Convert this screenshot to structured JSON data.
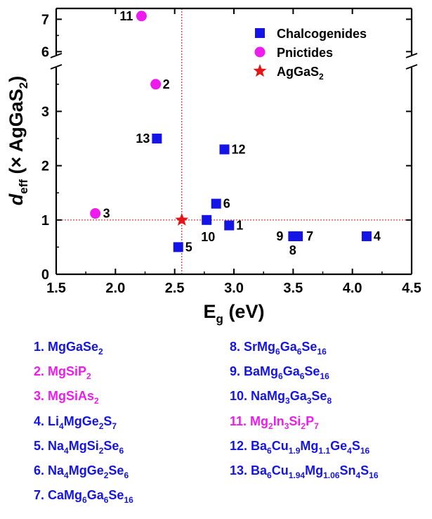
{
  "chart_data": {
    "type": "scatter",
    "xlabel": "E",
    "xlabel_sub": "g",
    "xlabel_unit": "(eV)",
    "ylabel_italic": "d",
    "ylabel_sub": "eff",
    "ylabel_rest": "(× AgGaS",
    "ylabel_rest_sub": "2",
    "ylabel_close": ")",
    "xlim": [
      1.5,
      4.5
    ],
    "ylim": [
      0,
      7.5
    ],
    "y_axis_break": [
      3.8,
      5.9
    ],
    "x_ticks": [
      "1.5",
      "2.0",
      "2.5",
      "3.0",
      "3.5",
      "4.0",
      "4.5"
    ],
    "y_ticks": [
      "0",
      "1",
      "2",
      "3",
      "6",
      "7"
    ],
    "reference_lines": {
      "x": 2.56,
      "y": 1.0,
      "color": "#d62728",
      "style": "dotted"
    },
    "legend_position": "top-right",
    "series": [
      {
        "name": "Chalcogenides",
        "marker": "square",
        "color": "#1414e6",
        "points": [
          {
            "label": "1",
            "x": 2.96,
            "y": 0.9
          },
          {
            "label": "4",
            "x": 4.12,
            "y": 0.7
          },
          {
            "label": "5",
            "x": 2.53,
            "y": 0.5
          },
          {
            "label": "6",
            "x": 2.85,
            "y": 1.3
          },
          {
            "label": "7",
            "x": 3.54,
            "y": 0.7
          },
          {
            "label": "8",
            "x": 3.52,
            "y": 0.7
          },
          {
            "label": "9",
            "x": 3.5,
            "y": 0.7
          },
          {
            "label": "10",
            "x": 2.77,
            "y": 1.0
          },
          {
            "label": "12",
            "x": 2.92,
            "y": 2.3
          },
          {
            "label": "13",
            "x": 2.35,
            "y": 2.5
          }
        ]
      },
      {
        "name": "Pnictides",
        "marker": "circle",
        "color": "#ee1bee",
        "points": [
          {
            "label": "2",
            "x": 2.34,
            "y": 3.5
          },
          {
            "label": "3",
            "x": 1.83,
            "y": 1.12
          },
          {
            "label": "11",
            "x": 2.22,
            "y": 7.1
          }
        ]
      },
      {
        "name": "AgGaS",
        "name_sub": "2",
        "marker": "star",
        "color": "#e61414",
        "points": [
          {
            "label": "",
            "x": 2.56,
            "y": 1.0
          }
        ]
      }
    ]
  },
  "compounds": {
    "left": [
      {
        "color": "#1414e6",
        "parts": [
          [
            "1. MgGaSe",
            ""
          ],
          [
            "2",
            "s"
          ]
        ]
      },
      {
        "color": "#ee1bee",
        "parts": [
          [
            "2. MgSiP",
            ""
          ],
          [
            "2",
            "s"
          ]
        ]
      },
      {
        "color": "#ee1bee",
        "parts": [
          [
            "3. MgSiAs",
            ""
          ],
          [
            "2",
            "s"
          ]
        ]
      },
      {
        "color": "#1414e6",
        "parts": [
          [
            "4. Li",
            ""
          ],
          [
            "4",
            "s"
          ],
          [
            "MgGe",
            ""
          ],
          [
            "2",
            "s"
          ],
          [
            "S",
            ""
          ],
          [
            "7",
            "s"
          ]
        ]
      },
      {
        "color": "#1414e6",
        "parts": [
          [
            "5. Na",
            ""
          ],
          [
            "4",
            "s"
          ],
          [
            "MgSi",
            ""
          ],
          [
            "2",
            "s"
          ],
          [
            "Se",
            ""
          ],
          [
            "6",
            "s"
          ]
        ]
      },
      {
        "color": "#1414e6",
        "parts": [
          [
            "6. Na",
            ""
          ],
          [
            "4",
            "s"
          ],
          [
            "MgGe",
            ""
          ],
          [
            "2",
            "s"
          ],
          [
            "Se",
            ""
          ],
          [
            "6",
            "s"
          ]
        ]
      },
      {
        "color": "#1414e6",
        "parts": [
          [
            "7. CaMg",
            ""
          ],
          [
            "6",
            "s"
          ],
          [
            "Ga",
            ""
          ],
          [
            "6",
            "s"
          ],
          [
            "Se",
            ""
          ],
          [
            "16",
            "s"
          ]
        ]
      }
    ],
    "right": [
      {
        "color": "#1414e6",
        "parts": [
          [
            "8. SrMg",
            ""
          ],
          [
            "6",
            "s"
          ],
          [
            "Ga",
            ""
          ],
          [
            "6",
            "s"
          ],
          [
            "Se",
            ""
          ],
          [
            "16",
            "s"
          ]
        ]
      },
      {
        "color": "#1414e6",
        "parts": [
          [
            "9. BaMg",
            ""
          ],
          [
            "6",
            "s"
          ],
          [
            "Ga",
            ""
          ],
          [
            "6",
            "s"
          ],
          [
            "Se",
            ""
          ],
          [
            "16",
            "s"
          ]
        ]
      },
      {
        "color": "#1414e6",
        "parts": [
          [
            "10. NaMg",
            ""
          ],
          [
            "3",
            "s"
          ],
          [
            "Ga",
            ""
          ],
          [
            "3",
            "s"
          ],
          [
            "Se",
            ""
          ],
          [
            "8",
            "s"
          ]
        ]
      },
      {
        "color": "#ee1bee",
        "parts": [
          [
            "11. Mg",
            ""
          ],
          [
            "2",
            "s"
          ],
          [
            "In",
            ""
          ],
          [
            "3",
            "s"
          ],
          [
            "Si",
            ""
          ],
          [
            "2",
            "s"
          ],
          [
            "P",
            ""
          ],
          [
            "7",
            "s"
          ]
        ]
      },
      {
        "color": "#1414e6",
        "parts": [
          [
            "12. Ba",
            ""
          ],
          [
            "6",
            "s"
          ],
          [
            "Cu",
            ""
          ],
          [
            "1.9",
            "s"
          ],
          [
            "Mg",
            ""
          ],
          [
            "1.1",
            "s"
          ],
          [
            "Ge",
            ""
          ],
          [
            "4",
            "s"
          ],
          [
            "S",
            ""
          ],
          [
            "16",
            "s"
          ]
        ]
      },
      {
        "color": "#1414e6",
        "parts": [
          [
            "13. Ba",
            ""
          ],
          [
            "6",
            "s"
          ],
          [
            "Cu",
            ""
          ],
          [
            "1.94",
            "s"
          ],
          [
            "Mg",
            ""
          ],
          [
            "1.06",
            "s"
          ],
          [
            "Sn",
            ""
          ],
          [
            "4",
            "s"
          ],
          [
            "S",
            ""
          ],
          [
            "16",
            "s"
          ]
        ]
      }
    ]
  }
}
